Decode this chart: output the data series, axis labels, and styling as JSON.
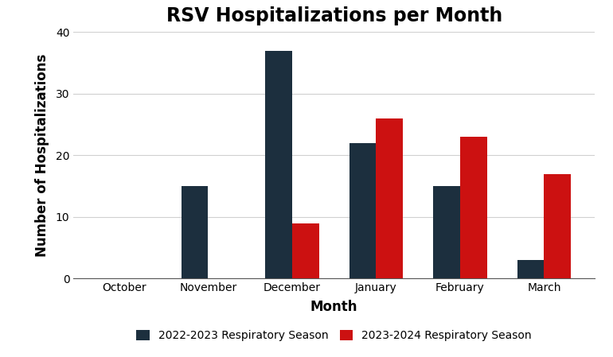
{
  "title": "RSV Hospitalizations per Month",
  "xlabel": "Month",
  "ylabel": "Number of Hospitalizations",
  "categories": [
    "October",
    "November",
    "December",
    "January",
    "February",
    "March"
  ],
  "series": [
    {
      "label": "2022-2023 Respiratory Season",
      "color": "#1c2f3e",
      "values": [
        0,
        15,
        37,
        22,
        15,
        3
      ]
    },
    {
      "label": "2023-2024 Respiratory Season",
      "color": "#cc1111",
      "values": [
        0,
        0,
        9,
        26,
        23,
        17
      ]
    }
  ],
  "ylim": [
    0,
    40
  ],
  "yticks": [
    0,
    10,
    20,
    30,
    40
  ],
  "bar_width": 0.32,
  "title_fontsize": 17,
  "axis_label_fontsize": 12,
  "tick_fontsize": 10,
  "legend_fontsize": 10,
  "background_color": "#ffffff",
  "grid_color": "#d0d0d0"
}
